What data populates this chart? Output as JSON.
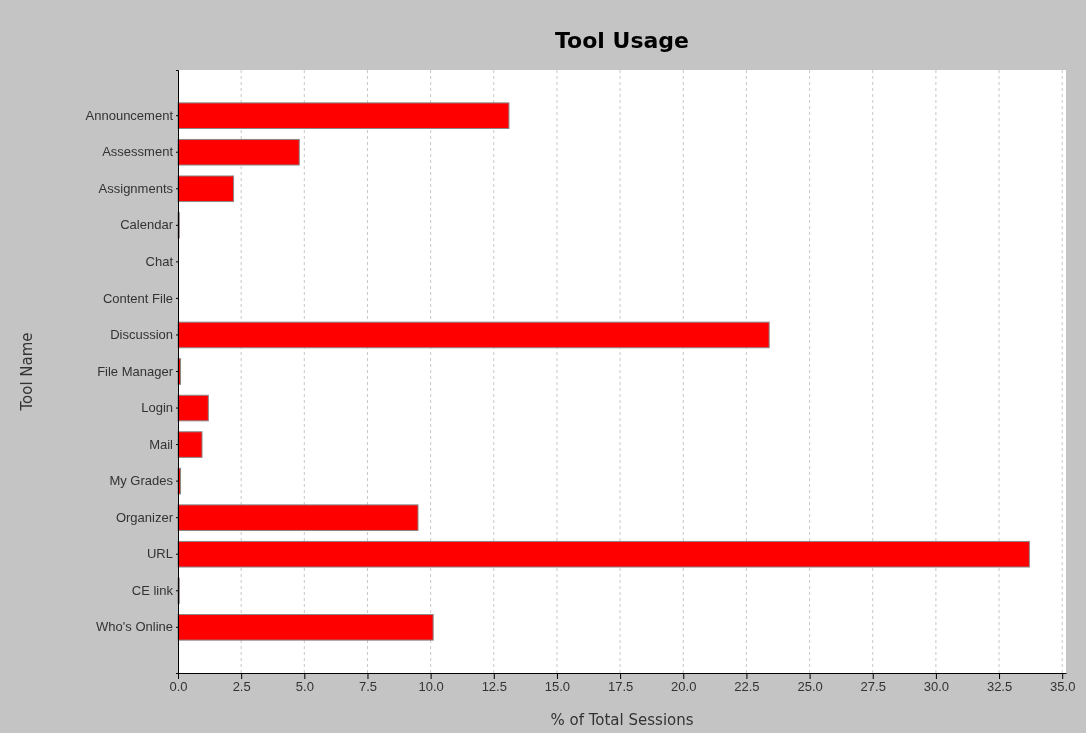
{
  "chart_data": {
    "type": "bar",
    "orientation": "horizontal",
    "title": "Tool Usage",
    "xlabel": "% of Total Sessions",
    "ylabel": "Tool Name",
    "categories": [
      "Announcement",
      "Assessment",
      "Assignments",
      "Calendar",
      "Chat",
      "Content File",
      "Discussion",
      "File Manager",
      "Login",
      "Mail",
      "My Grades",
      "Organizer",
      "URL",
      "CE link",
      "Who's Online"
    ],
    "values": [
      13.1,
      4.8,
      2.2,
      0.05,
      0,
      0,
      23.4,
      0.1,
      1.2,
      0.95,
      0.1,
      9.5,
      33.7,
      0.05,
      10.1
    ],
    "color": "#ff0000",
    "xlim": [
      0,
      35.15
    ],
    "xticks": [
      {
        "value": 0,
        "label": "0.0"
      },
      {
        "value": 2.5,
        "label": "2.5"
      },
      {
        "value": 5,
        "label": "5.0"
      },
      {
        "value": 7.5,
        "label": "7.5"
      },
      {
        "value": 10,
        "label": "10.0"
      },
      {
        "value": 12.5,
        "label": "12.5"
      },
      {
        "value": 15,
        "label": "15.0"
      },
      {
        "value": 17.5,
        "label": "17.5"
      },
      {
        "value": 20,
        "label": "20.0"
      },
      {
        "value": 22.5,
        "label": "22.5"
      },
      {
        "value": 25,
        "label": "25.0"
      },
      {
        "value": 27.5,
        "label": "27.5"
      },
      {
        "value": 30,
        "label": "30.0"
      },
      {
        "value": 32.5,
        "label": "32.5"
      },
      {
        "value": 35,
        "label": "35.0"
      }
    ],
    "grid": "x"
  }
}
